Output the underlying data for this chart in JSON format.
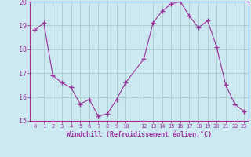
{
  "x": [
    0,
    1,
    2,
    3,
    4,
    5,
    6,
    7,
    8,
    9,
    10,
    12,
    13,
    14,
    15,
    16,
    17,
    18,
    19,
    20,
    21,
    22,
    23
  ],
  "y": [
    18.8,
    19.1,
    16.9,
    16.6,
    16.4,
    15.7,
    15.9,
    15.2,
    15.3,
    15.9,
    16.6,
    17.6,
    19.1,
    19.6,
    19.9,
    20.0,
    19.4,
    18.9,
    19.2,
    18.1,
    16.5,
    15.7,
    15.4
  ],
  "line_color": "#993399",
  "marker_color": "#993399",
  "bg_color": "#cce8f0",
  "grid_color": "#aacccc",
  "axis_color": "#993399",
  "xlabel": "Windchill (Refroidissement éolien,°C)",
  "xlim": [
    -0.5,
    23.5
  ],
  "ylim": [
    15,
    20
  ],
  "yticks": [
    15,
    16,
    17,
    18,
    19,
    20
  ],
  "xticks": [
    0,
    1,
    2,
    3,
    4,
    5,
    6,
    7,
    8,
    9,
    10,
    12,
    13,
    14,
    15,
    16,
    17,
    18,
    19,
    20,
    21,
    22,
    23
  ],
  "xtick_labels": [
    "0",
    "1",
    "2",
    "3",
    "4",
    "5",
    "6",
    "7",
    "8",
    "9",
    "10",
    "12",
    "13",
    "14",
    "15",
    "16",
    "17",
    "18",
    "19",
    "20",
    "21",
    "22",
    "23"
  ],
  "font_color": "#993399"
}
